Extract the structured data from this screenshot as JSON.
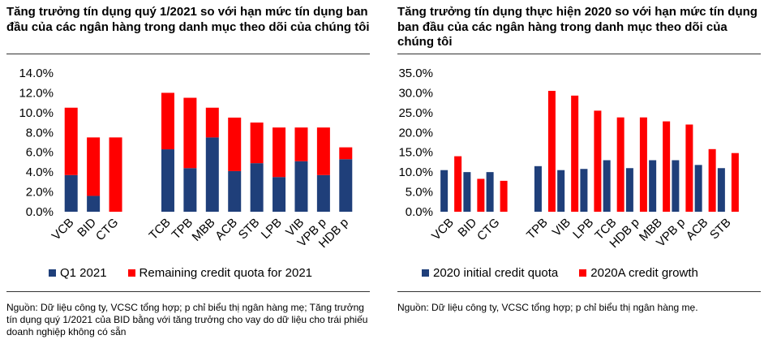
{
  "colors": {
    "blue": "#1f3f7a",
    "red": "#ff0000"
  },
  "chart_data": [
    {
      "type": "bar",
      "stacked": true,
      "title": "Tăng trưởng tín dụng quý 1/2021 so với hạn mức tín dụng ban đầu của các ngân hàng trong danh mục theo dõi của chúng tôi",
      "y_ticks": [
        "14.0%",
        "12.0%",
        "10.0%",
        "8.0%",
        "6.0%",
        "4.0%",
        "2.0%",
        "0.0%"
      ],
      "ylim": [
        0,
        14
      ],
      "y_unit": "%",
      "categories": [
        "VCB",
        "BID",
        "CTG",
        "TCB",
        "TPB",
        "MBB",
        "ACB",
        "STB",
        "LPB",
        "VIB",
        "VPB p",
        "HDB p"
      ],
      "series": [
        {
          "name": "Q1 2021",
          "color": "#1f3f7a",
          "values": [
            3.7,
            1.6,
            0.0,
            6.3,
            4.4,
            7.5,
            4.1,
            4.9,
            3.5,
            5.1,
            3.7,
            5.3
          ]
        },
        {
          "name": "Remaining credit quota for 2021",
          "color": "#ff0000",
          "values": [
            6.8,
            5.9,
            7.5,
            5.7,
            7.1,
            3.0,
            5.4,
            4.1,
            5.0,
            3.4,
            4.8,
            1.2
          ]
        }
      ],
      "legend": {
        "q1": "Q1 2021",
        "remaining": "Remaining credit quota for 2021"
      },
      "legend_position": "bottom",
      "grid": false,
      "source": "Nguồn: Dữ liệu công ty, VCSC tổng hợp; p chỉ biểu thị ngân hàng mẹ; Tăng trưởng tín dụng quý 1/2021 của BID bằng với tăng trưởng cho vay do dữ liệu cho trái phiếu doanh nghiệp không có sẵn"
    },
    {
      "type": "bar",
      "stacked": false,
      "title": "Tăng trưởng tín dụng thực hiện 2020 so với hạn mức tín dụng ban đầu của các ngân hàng trong danh mục theo dõi của chúng tôi",
      "y_ticks": [
        "35.0%",
        "30.0%",
        "25.0%",
        "20.0%",
        "15.0%",
        "10.0%",
        "5.0%",
        "0.0%"
      ],
      "ylim": [
        0,
        35
      ],
      "y_unit": "%",
      "categories": [
        "VCB",
        "BID",
        "CTG",
        "TPB",
        "VIB",
        "LPB",
        "TCB",
        "HDB p",
        "MBB",
        "VPB p",
        "ACB",
        "STB"
      ],
      "series": [
        {
          "name": "2020 initial credit quota",
          "color": "#1f3f7a",
          "values": [
            10.5,
            10.0,
            10.0,
            11.5,
            10.5,
            10.8,
            13.0,
            11.0,
            13.0,
            13.0,
            11.8,
            11.0
          ]
        },
        {
          "name": "2020A credit growth",
          "color": "#ff0000",
          "values": [
            14.0,
            8.3,
            7.8,
            30.5,
            29.3,
            25.5,
            23.8,
            23.8,
            22.8,
            22.0,
            15.8,
            14.8
          ]
        }
      ],
      "legend": {
        "initial": "2020 initial credit quota",
        "actual": "2020A credit growth"
      },
      "legend_position": "bottom",
      "grid": false,
      "source": "Nguồn: Dữ liệu công ty, VCSC tổng hợp; p chỉ biểu thị ngân hàng mẹ."
    }
  ]
}
